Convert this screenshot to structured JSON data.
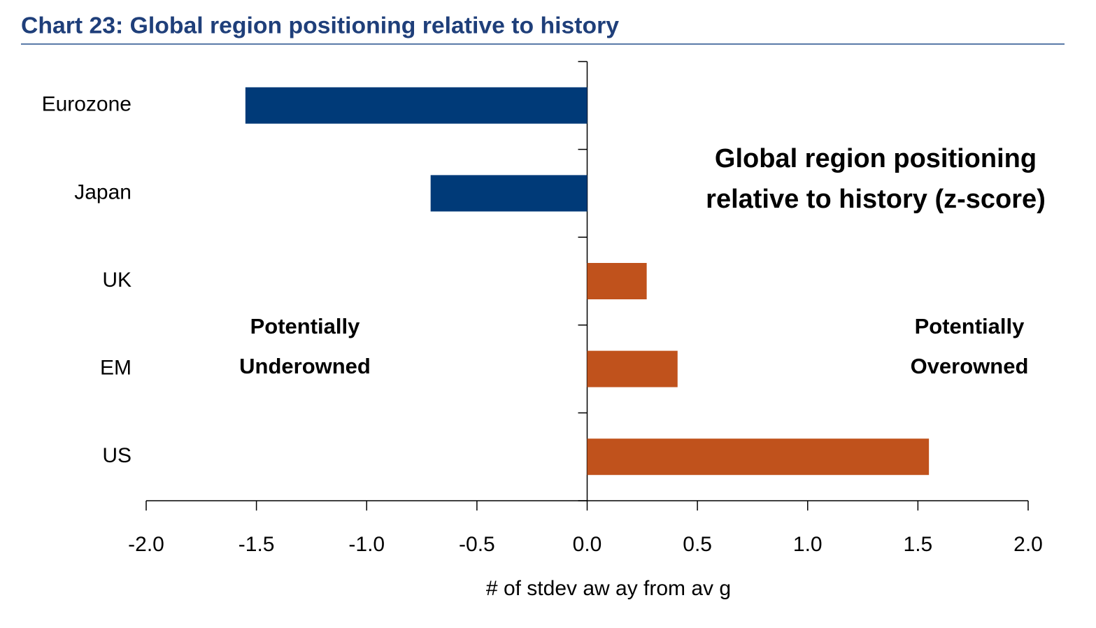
{
  "chart_data": {
    "type": "hbar",
    "title": "Chart 23: Global region positioning relative to history",
    "categories": [
      "Eurozone",
      "Japan",
      "UK",
      "EM",
      "US"
    ],
    "values": [
      -1.55,
      -0.71,
      0.27,
      0.41,
      1.55
    ],
    "colors": [
      "#003a78",
      "#003a78",
      "#c0521c",
      "#c0521c",
      "#c0521c"
    ],
    "xlim": [
      -2.0,
      2.0
    ],
    "xticks": [
      {
        "value": -2.0,
        "label": "-2.0"
      },
      -1.5,
      {
        "value": -1.0,
        "label": "-1.0"
      },
      -0.5,
      {
        "value": 0.0,
        "label": "0.0"
      },
      0.5,
      {
        "value": 1.0,
        "label": "1.0"
      },
      1.5,
      {
        "value": 2.0,
        "label": "2.0"
      }
    ],
    "xlabel": "# of stdev  aw ay  from  av g",
    "annotations": {
      "chart_label": [
        "Global region positioning",
        "relative to history (z-score)"
      ],
      "underowned": [
        "Potentially",
        "Underowned"
      ],
      "overowned": [
        "Potentially",
        "Overowned"
      ]
    },
    "grid": false
  }
}
